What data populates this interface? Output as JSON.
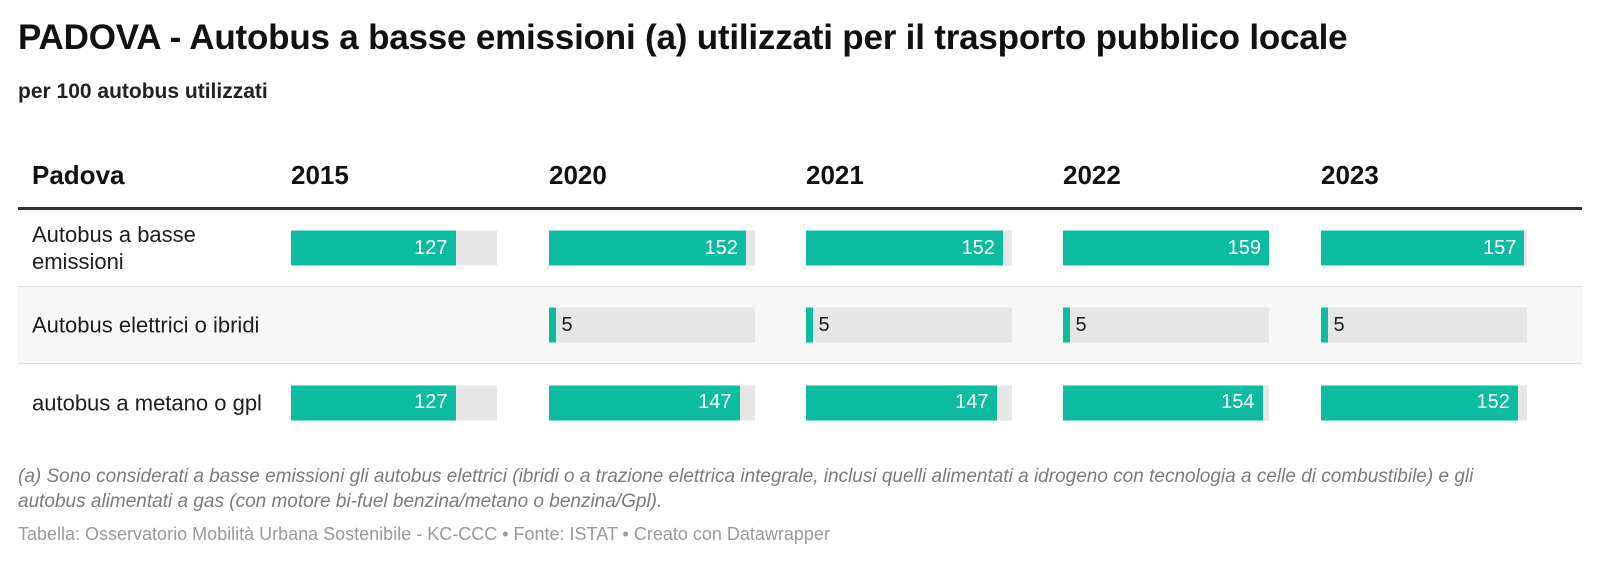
{
  "title": "PADOVA - Autobus a basse emissioni (a) utilizzati per il trasporto pubblico locale",
  "subtitle": "per 100 autobus utilizzati",
  "header": {
    "row_label": "Padova",
    "columns": [
      "2015",
      "2020",
      "2021",
      "2022",
      "2023"
    ]
  },
  "colors": {
    "bar": "#0cbca0",
    "track": "#e6e6e6"
  },
  "chart_data": {
    "type": "table",
    "title": "PADOVA - Autobus a basse emissioni (a) utilizzati per il trasporto pubblico locale",
    "subtitle": "per 100 autobus utilizzati",
    "columns": [
      "2015",
      "2020",
      "2021",
      "2022",
      "2023"
    ],
    "scale_max": 159,
    "rows": [
      {
        "label": "Autobus a basse emissioni",
        "values": [
          127,
          152,
          152,
          159,
          157
        ]
      },
      {
        "label": "Autobus elettrici o ibridi",
        "values": [
          null,
          5,
          5,
          5,
          5
        ]
      },
      {
        "label": "autobus a metano o gpl",
        "values": [
          127,
          147,
          147,
          154,
          152
        ]
      }
    ]
  },
  "notes": "(a) Sono considerati a basse emissioni gli autobus elettrici (ibridi o a trazione elettrica integrale, inclusi quelli alimentati a idrogeno con tecnologia a celle di combustibile) e gli autobus alimentati a gas (con motore bi-fuel benzina/metano o benzina/Gpl).",
  "footer": "Tabella: Osservatorio Mobilità Urbana Sostenibile - KC-CCC • Fonte: ISTAT • Creato con Datawrapper"
}
